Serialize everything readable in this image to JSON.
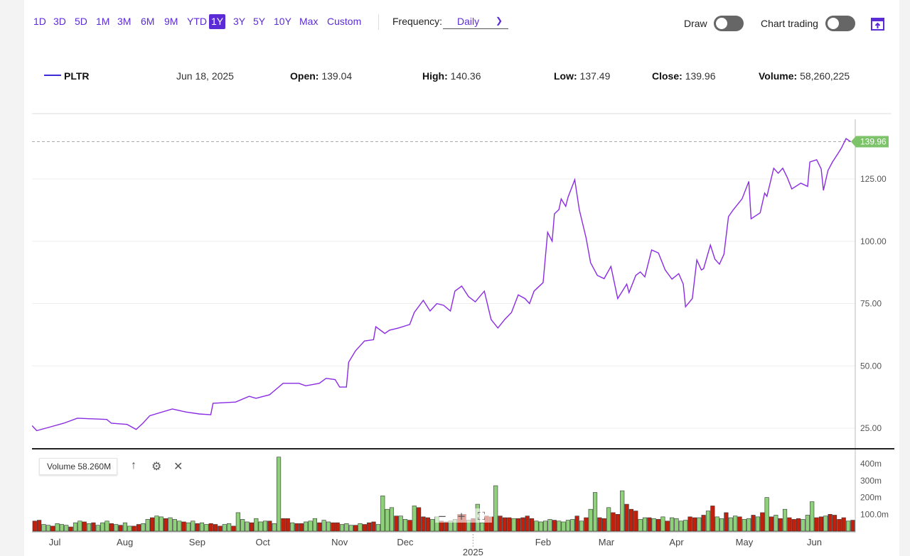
{
  "ranges": [
    "1D",
    "3D",
    "5D",
    "1M",
    "3M",
    "6M",
    "9M",
    "YTD",
    "1Y",
    "3Y",
    "5Y",
    "10Y",
    "Max",
    "Custom"
  ],
  "active_range": "1Y",
  "frequency": {
    "label": "Frequency:",
    "value": "Daily"
  },
  "draw_label": "Draw",
  "chart_trading_label": "Chart trading",
  "legend": {
    "symbol": "PLTR",
    "date": "Jun 18, 2025",
    "open_label": "Open:",
    "open": "139.04",
    "high_label": "High:",
    "high": "140.36",
    "low_label": "Low:",
    "low": "137.49",
    "close_label": "Close:",
    "close": "139.96",
    "volume_label": "Volume:",
    "volume": "58,260,225"
  },
  "volume_panel": {
    "label": "Volume 58.260M",
    "ticks": [
      "400m",
      "300m",
      "200m",
      "100.0m"
    ]
  },
  "colors": {
    "accent": "#5b2bd6",
    "line": "#8a2be2",
    "up": "#8fd17a",
    "down": "#c0200c",
    "last": "#7cc36a"
  },
  "chart_data": {
    "type": "line",
    "series_name": "PLTR",
    "x_unit": "days since Jun 18, 2024",
    "y_ticks": [
      "125.00",
      "100.00",
      "75.00",
      "50.00",
      "25.00"
    ],
    "y_tick_values": [
      125,
      100,
      75,
      50,
      25
    ],
    "x_labels": [
      "Jul",
      "Aug",
      "Sep",
      "Oct",
      "Nov",
      "Dec",
      "2025",
      "Feb",
      "Mar",
      "Apr",
      "May",
      "Jun"
    ],
    "x_label_days": [
      13,
      44,
      76,
      105,
      139,
      168,
      198,
      229,
      257,
      288,
      318,
      349
    ],
    "last_value": "139.96",
    "points": [
      [
        3,
        26
      ],
      [
        5,
        24
      ],
      [
        11,
        25.5
      ],
      [
        17,
        27
      ],
      [
        23,
        29
      ],
      [
        36,
        28.5
      ],
      [
        38,
        27
      ],
      [
        45,
        26.5
      ],
      [
        49,
        24.5
      ],
      [
        52,
        27
      ],
      [
        55,
        30
      ],
      [
        65,
        32.7
      ],
      [
        71,
        31.5
      ],
      [
        77,
        30.7
      ],
      [
        82,
        30.4
      ],
      [
        83,
        35
      ],
      [
        93,
        35.5
      ],
      [
        99,
        37.8
      ],
      [
        102,
        37
      ],
      [
        108,
        38.4
      ],
      [
        114,
        43
      ],
      [
        121,
        43
      ],
      [
        124,
        42
      ],
      [
        130,
        43
      ],
      [
        133,
        45
      ],
      [
        137,
        44.5
      ],
      [
        139,
        41.5
      ],
      [
        142,
        41.5
      ],
      [
        143,
        51.5
      ],
      [
        146,
        56
      ],
      [
        150,
        60
      ],
      [
        154,
        60.5
      ],
      [
        155,
        65.7
      ],
      [
        159,
        63
      ],
      [
        161,
        64.3
      ],
      [
        165,
        65.2
      ],
      [
        170,
        66.6
      ],
      [
        172,
        71.4
      ],
      [
        176,
        76.3
      ],
      [
        179,
        72
      ],
      [
        182,
        75
      ],
      [
        185,
        74.3
      ],
      [
        188,
        72
      ],
      [
        190,
        80
      ],
      [
        193,
        82
      ],
      [
        196,
        77.8
      ],
      [
        199,
        75.7
      ],
      [
        203,
        80
      ],
      [
        206,
        68.6
      ],
      [
        209,
        65.2
      ],
      [
        212,
        68.6
      ],
      [
        215,
        71.4
      ],
      [
        218,
        78.5
      ],
      [
        221,
        77
      ],
      [
        223,
        75
      ],
      [
        225,
        80
      ],
      [
        229,
        83.4
      ],
      [
        231,
        103.6
      ],
      [
        233,
        100
      ],
      [
        234,
        111
      ],
      [
        236,
        112.7
      ],
      [
        237,
        117
      ],
      [
        239,
        114
      ],
      [
        240,
        117.6
      ],
      [
        243,
        124.7
      ],
      [
        245,
        112.7
      ],
      [
        248,
        101.4
      ],
      [
        250,
        91.4
      ],
      [
        253,
        86.3
      ],
      [
        256,
        85
      ],
      [
        259,
        89.9
      ],
      [
        262,
        77
      ],
      [
        266,
        82.8
      ],
      [
        267,
        79.4
      ],
      [
        270,
        86.3
      ],
      [
        272,
        87.7
      ],
      [
        274,
        85.7
      ],
      [
        277,
        96.5
      ],
      [
        280,
        95.3
      ],
      [
        283,
        88.5
      ],
      [
        286,
        84.8
      ],
      [
        289,
        87
      ],
      [
        291,
        82.8
      ],
      [
        292,
        73.7
      ],
      [
        295,
        77
      ],
      [
        297,
        92.5
      ],
      [
        299,
        88.5
      ],
      [
        300,
        89
      ],
      [
        303,
        98.5
      ],
      [
        305,
        92.8
      ],
      [
        307,
        90.8
      ],
      [
        309,
        94.8
      ],
      [
        311,
        109.9
      ],
      [
        313,
        112.5
      ],
      [
        317,
        117
      ],
      [
        320,
        124
      ],
      [
        321,
        109
      ],
      [
        325,
        111.4
      ],
      [
        327,
        119.3
      ],
      [
        328,
        118
      ],
      [
        331,
        129.3
      ],
      [
        333,
        127.3
      ],
      [
        335,
        129.3
      ],
      [
        337,
        125.6
      ],
      [
        339,
        121
      ],
      [
        343,
        123.3
      ],
      [
        346,
        122
      ],
      [
        347,
        131.8
      ],
      [
        350,
        132.7
      ],
      [
        352,
        129
      ],
      [
        353,
        120.4
      ],
      [
        355,
        128.4
      ],
      [
        357,
        131.8
      ],
      [
        360,
        136
      ],
      [
        361,
        137.5
      ],
      [
        363,
        141.2
      ],
      [
        365,
        139.96
      ]
    ],
    "volume_M": [
      -60,
      -65,
      40,
      35,
      -30,
      45,
      40,
      35,
      -25,
      50,
      60,
      -55,
      45,
      -50,
      35,
      50,
      60,
      -45,
      40,
      -35,
      50,
      30,
      -30,
      -40,
      45,
      70,
      -80,
      90,
      85,
      -75,
      80,
      70,
      60,
      -55,
      50,
      60,
      -45,
      50,
      40,
      -45,
      -40,
      -30,
      40,
      45,
      -30,
      110,
      70,
      55,
      -50,
      75,
      55,
      60,
      -60,
      45,
      440,
      -75,
      -75,
      50,
      -45,
      -45,
      55,
      60,
      75,
      -50,
      65,
      55,
      -50,
      -50,
      40,
      45,
      35,
      -35,
      45,
      -40,
      -50,
      -55,
      40,
      210,
      130,
      140,
      -90,
      90,
      70,
      -65,
      150,
      -140,
      -85,
      -80,
      70,
      85,
      -60,
      -55,
      60,
      70,
      -100,
      -100,
      65,
      -75,
      160,
      50,
      -90,
      -85,
      270,
      -90,
      -80,
      -80,
      75,
      -75,
      -80,
      -90,
      -75,
      60,
      55,
      60,
      70,
      -65,
      60,
      55,
      65,
      70,
      -90,
      60,
      -80,
      130,
      230,
      -80,
      -75,
      140,
      -110,
      -100,
      240,
      -160,
      -130,
      -120,
      70,
      80,
      -80,
      75,
      -70,
      85,
      -60,
      80,
      75,
      60,
      65,
      -85,
      -80,
      80,
      -95,
      120,
      -150,
      85,
      75,
      -110,
      80,
      90,
      -85,
      70,
      75,
      -95,
      85,
      -110,
      200,
      -85,
      95,
      -75,
      130,
      -80,
      -70,
      -75,
      70,
      95,
      175,
      -80,
      -85,
      90,
      -100,
      -95,
      -70,
      -80,
      60,
      -65
    ]
  }
}
